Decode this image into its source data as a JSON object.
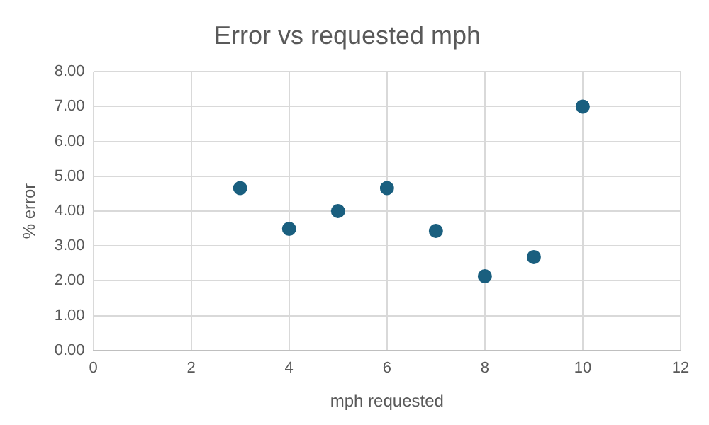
{
  "chart_data": {
    "type": "scatter",
    "title": "Error vs requested mph",
    "xlabel": "mph requested",
    "ylabel": "% error",
    "x": [
      3,
      4,
      5,
      6,
      7,
      8,
      9,
      10
    ],
    "series": [
      {
        "color": "#1a5f7f",
        "values": [
          4.66,
          3.49,
          4.0,
          4.66,
          3.43,
          2.13,
          2.68,
          7.0
        ]
      }
    ],
    "xlim": [
      0,
      12
    ],
    "xticks": [
      0,
      2,
      4,
      6,
      8,
      10,
      12
    ],
    "ylim": [
      0,
      8
    ],
    "yticks": [
      {
        "value": 0,
        "label": "0.00"
      },
      {
        "value": 1,
        "label": "1.00"
      },
      {
        "value": 2,
        "label": "2.00"
      },
      {
        "value": 3,
        "label": "3.00"
      },
      {
        "value": 4,
        "label": "4.00"
      },
      {
        "value": 5,
        "label": "5.00"
      },
      {
        "value": 6,
        "label": "6.00"
      },
      {
        "value": 7,
        "label": "7.00"
      },
      {
        "value": 8,
        "label": "8.00"
      }
    ],
    "grid": true,
    "legend": false,
    "marker": "circle"
  }
}
